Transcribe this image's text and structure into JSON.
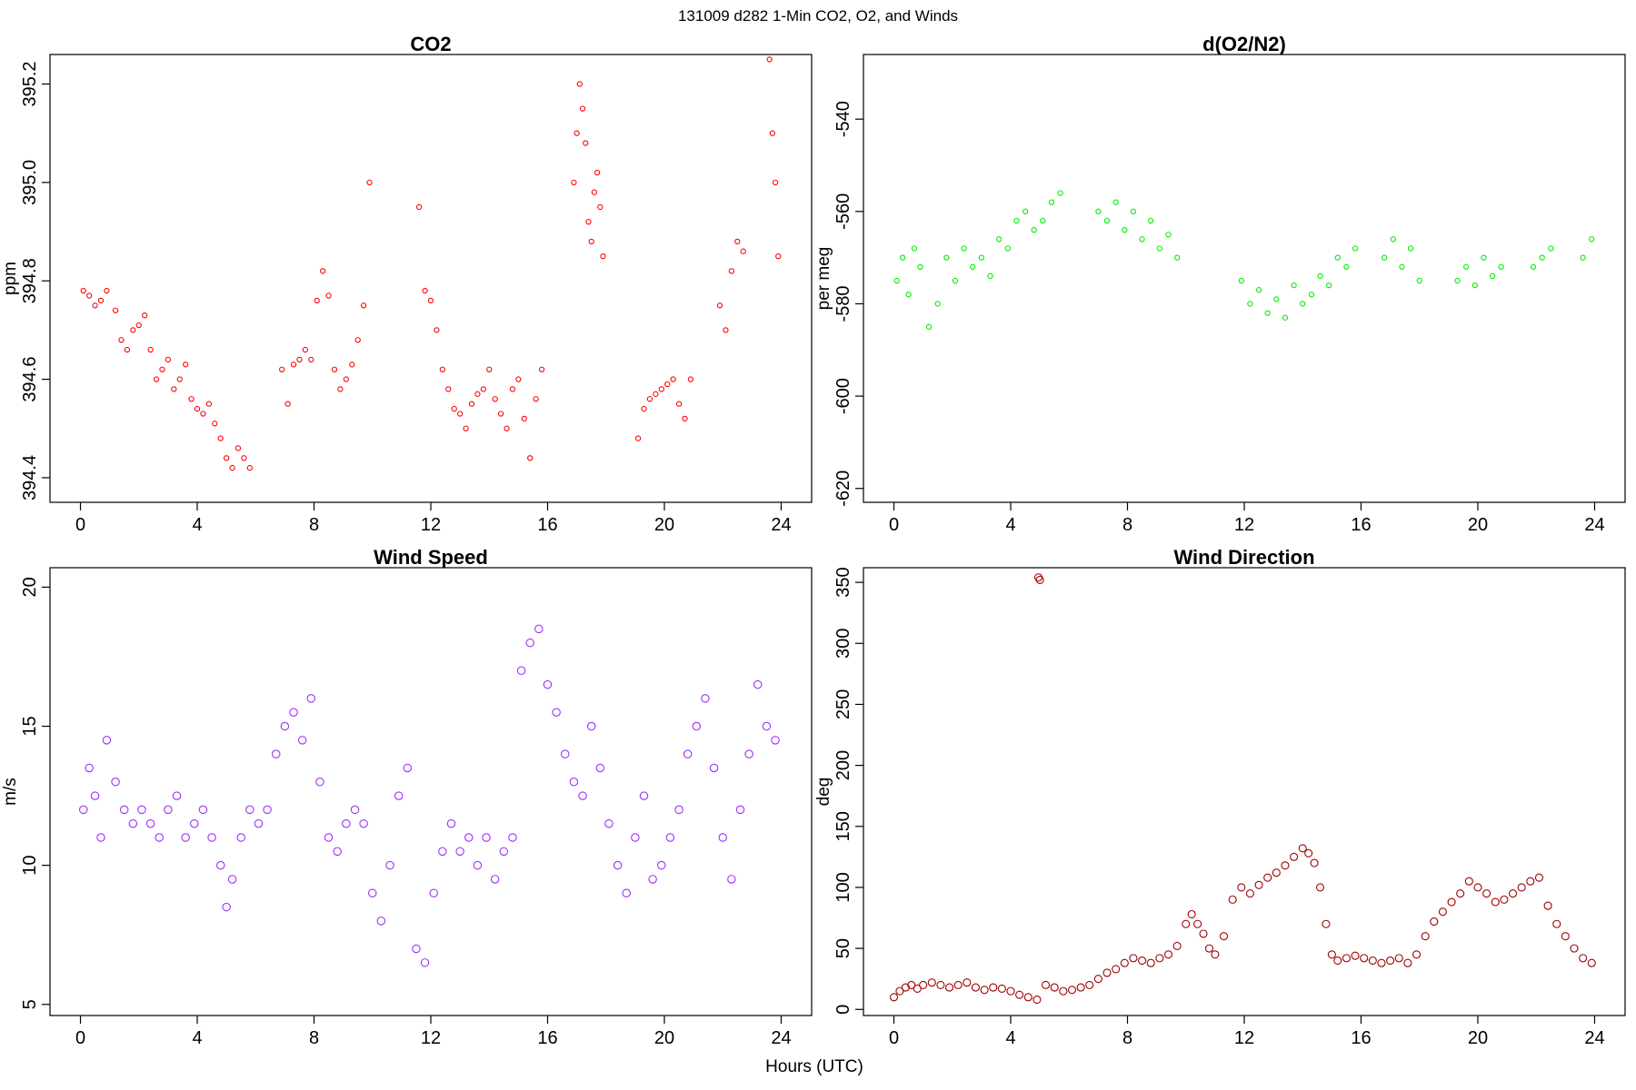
{
  "supertitle": "131009   d282   1-Min CO2, O2, and Winds",
  "xlabel": "Hours (UTC)",
  "chart_data": [
    {
      "id": "co2",
      "type": "scatter",
      "title": "CO2",
      "ylabel": "ppm",
      "xlim": [
        0,
        24
      ],
      "ylim": [
        394.35,
        395.26
      ],
      "xticks": [
        0,
        4,
        8,
        12,
        16,
        20,
        24
      ],
      "yticks": [
        394.4,
        394.6,
        394.8,
        395.0,
        395.2
      ],
      "ytick_labels": [
        "394.4",
        "394.6",
        "394.8",
        "395.0",
        "395.2"
      ],
      "color": "#ff0000",
      "series": [
        {
          "x": [
            0.1,
            0.3,
            0.5,
            0.7,
            0.9,
            1.2,
            1.4,
            1.6,
            1.8,
            2.0,
            2.2,
            2.4,
            2.6,
            2.8,
            3.0,
            3.2,
            3.4,
            3.6,
            3.8,
            4.0,
            4.2,
            4.4,
            4.6,
            4.8,
            5.0,
            5.2,
            5.4,
            5.6,
            5.8,
            6.9,
            7.1,
            7.3,
            7.5,
            7.7,
            7.9,
            8.1,
            8.3,
            8.5,
            8.7,
            8.9,
            9.1,
            9.3,
            9.5,
            9.7,
            9.9,
            11.6,
            11.8,
            12.0,
            12.2,
            12.4,
            12.6,
            12.8,
            13.0,
            13.2,
            13.4,
            13.6,
            13.8,
            14.0,
            14.2,
            14.4,
            14.6,
            14.8,
            15.0,
            15.2,
            15.4,
            15.6,
            15.8,
            16.9,
            17.0,
            17.1,
            17.2,
            17.3,
            17.4,
            17.5,
            17.6,
            17.7,
            17.8,
            17.9,
            19.1,
            19.3,
            19.5,
            19.7,
            19.9,
            20.1,
            20.3,
            20.5,
            20.7,
            20.9,
            21.9,
            22.1,
            22.3,
            22.5,
            22.7,
            23.6,
            23.7,
            23.8,
            23.9
          ],
          "y": [
            394.78,
            394.77,
            394.75,
            394.76,
            394.78,
            394.74,
            394.68,
            394.66,
            394.7,
            394.71,
            394.73,
            394.66,
            394.6,
            394.62,
            394.64,
            394.58,
            394.6,
            394.63,
            394.56,
            394.54,
            394.53,
            394.55,
            394.51,
            394.48,
            394.44,
            394.42,
            394.46,
            394.44,
            394.42,
            394.62,
            394.55,
            394.63,
            394.64,
            394.66,
            394.64,
            394.76,
            394.82,
            394.77,
            394.62,
            394.58,
            394.6,
            394.63,
            394.68,
            394.75,
            395.0,
            394.95,
            394.78,
            394.76,
            394.7,
            394.62,
            394.58,
            394.54,
            394.53,
            394.5,
            394.55,
            394.57,
            394.58,
            394.62,
            394.56,
            394.53,
            394.5,
            394.58,
            394.6,
            394.52,
            394.44,
            394.56,
            394.62,
            395.0,
            395.1,
            395.2,
            395.15,
            395.08,
            394.92,
            394.88,
            394.98,
            395.02,
            394.95,
            394.85,
            394.48,
            394.54,
            394.56,
            394.57,
            394.58,
            394.59,
            394.6,
            394.55,
            394.52,
            394.6,
            394.75,
            394.7,
            394.82,
            394.88,
            394.86,
            395.25,
            395.1,
            395.0,
            394.85
          ]
        }
      ]
    },
    {
      "id": "o2",
      "type": "scatter",
      "title": "d(O2/N2)",
      "ylabel": "per meg",
      "xlim": [
        0,
        24
      ],
      "ylim": [
        -623,
        -526
      ],
      "xticks": [
        0,
        4,
        8,
        12,
        16,
        20,
        24
      ],
      "yticks": [
        -620,
        -600,
        -580,
        -560,
        -540
      ],
      "ytick_labels": [
        "-620",
        "-600",
        "-580",
        "-560",
        "-540"
      ],
      "color": "#00ee00",
      "series": [
        {
          "x": [
            0.1,
            0.3,
            0.5,
            0.7,
            0.9,
            1.2,
            1.5,
            1.8,
            2.1,
            2.4,
            2.7,
            3.0,
            3.3,
            3.6,
            3.9,
            4.2,
            4.5,
            4.8,
            5.1,
            5.4,
            5.7,
            7.0,
            7.3,
            7.6,
            7.9,
            8.2,
            8.5,
            8.8,
            9.1,
            9.4,
            9.7,
            11.9,
            12.2,
            12.5,
            12.8,
            13.1,
            13.4,
            13.7,
            14.0,
            14.3,
            14.6,
            14.9,
            15.2,
            15.5,
            15.8,
            16.8,
            17.1,
            17.4,
            17.7,
            18.0,
            19.3,
            19.6,
            19.9,
            20.2,
            20.5,
            20.8,
            21.9,
            22.2,
            22.5,
            23.6,
            23.9
          ],
          "y": [
            -575,
            -570,
            -578,
            -568,
            -572,
            -585,
            -580,
            -570,
            -575,
            -568,
            -572,
            -570,
            -574,
            -566,
            -568,
            -562,
            -560,
            -564,
            -562,
            -558,
            -556,
            -560,
            -562,
            -558,
            -564,
            -560,
            -566,
            -562,
            -568,
            -565,
            -570,
            -575,
            -580,
            -577,
            -582,
            -579,
            -583,
            -576,
            -580,
            -578,
            -574,
            -576,
            -570,
            -572,
            -568,
            -570,
            -566,
            -572,
            -568,
            -575,
            -575,
            -572,
            -576,
            -570,
            -574,
            -572,
            -572,
            -570,
            -568,
            -570,
            -566
          ]
        }
      ]
    },
    {
      "id": "wind_speed",
      "type": "scatter",
      "title": "Wind Speed",
      "ylabel": "m/s",
      "xlim": [
        0,
        24
      ],
      "ylim": [
        4.6,
        20.7
      ],
      "xticks": [
        0,
        4,
        8,
        12,
        16,
        20,
        24
      ],
      "yticks": [
        5,
        10,
        15,
        20
      ],
      "ytick_labels": [
        "5",
        "10",
        "15",
        "20"
      ],
      "color": "#9b30ff",
      "series": [
        {
          "x": [
            0.1,
            0.3,
            0.5,
            0.7,
            0.9,
            1.2,
            1.5,
            1.8,
            2.1,
            2.4,
            2.7,
            3.0,
            3.3,
            3.6,
            3.9,
            4.2,
            4.5,
            4.8,
            5.0,
            5.2,
            5.5,
            5.8,
            6.1,
            6.4,
            6.7,
            7.0,
            7.3,
            7.6,
            7.9,
            8.2,
            8.5,
            8.8,
            9.1,
            9.4,
            9.7,
            10.0,
            10.3,
            10.6,
            10.9,
            11.2,
            11.5,
            11.8,
            12.1,
            12.4,
            12.7,
            13.0,
            13.3,
            13.6,
            13.9,
            14.2,
            14.5,
            14.8,
            15.1,
            15.4,
            15.7,
            16.0,
            16.3,
            16.6,
            16.9,
            17.2,
            17.5,
            17.8,
            18.1,
            18.4,
            18.7,
            19.0,
            19.3,
            19.6,
            19.9,
            20.2,
            20.5,
            20.8,
            21.1,
            21.4,
            21.7,
            22.0,
            22.3,
            22.6,
            22.9,
            23.2,
            23.5,
            23.8
          ],
          "y": [
            12.0,
            13.5,
            12.5,
            11.0,
            14.5,
            13.0,
            12.0,
            11.5,
            12.0,
            11.5,
            11.0,
            12.0,
            12.5,
            11.0,
            11.5,
            12.0,
            11.0,
            10.0,
            8.5,
            9.5,
            11.0,
            12.0,
            11.5,
            12.0,
            14.0,
            15.0,
            15.5,
            14.5,
            16.0,
            13.0,
            11.0,
            10.5,
            11.5,
            12.0,
            11.5,
            9.0,
            8.0,
            10.0,
            12.5,
            13.5,
            7.0,
            6.5,
            9.0,
            10.5,
            11.5,
            10.5,
            11.0,
            10.0,
            11.0,
            9.5,
            10.5,
            11.0,
            17.0,
            18.0,
            18.5,
            16.5,
            15.5,
            14.0,
            13.0,
            12.5,
            15.0,
            13.5,
            11.5,
            10.0,
            9.0,
            11.0,
            12.5,
            9.5,
            10.0,
            11.0,
            12.0,
            14.0,
            15.0,
            16.0,
            13.5,
            11.0,
            9.5,
            12.0,
            14.0,
            16.5,
            15.0,
            14.5
          ]
        }
      ]
    },
    {
      "id": "wind_direction",
      "type": "scatter",
      "title": "Wind Direction",
      "ylabel": "deg",
      "xlim": [
        0,
        24
      ],
      "ylim": [
        -5,
        362
      ],
      "xticks": [
        0,
        4,
        8,
        12,
        16,
        20,
        24
      ],
      "yticks": [
        0,
        50,
        100,
        150,
        200,
        250,
        300,
        350
      ],
      "ytick_labels": [
        "0",
        "50",
        "100",
        "150",
        "200",
        "250",
        "300",
        "350"
      ],
      "color": "#a00000",
      "series": [
        {
          "x": [
            0.0,
            0.2,
            0.4,
            0.6,
            0.8,
            1.0,
            1.3,
            1.6,
            1.9,
            2.2,
            2.5,
            2.8,
            3.1,
            3.4,
            3.7,
            4.0,
            4.3,
            4.6,
            4.9,
            4.95,
            5.0,
            5.2,
            5.5,
            5.8,
            6.1,
            6.4,
            6.7,
            7.0,
            7.3,
            7.6,
            7.9,
            8.2,
            8.5,
            8.8,
            9.1,
            9.4,
            9.7,
            10.0,
            10.2,
            10.4,
            10.6,
            10.8,
            11.0,
            11.3,
            11.6,
            11.9,
            12.2,
            12.5,
            12.8,
            13.1,
            13.4,
            13.7,
            14.0,
            14.2,
            14.4,
            14.6,
            14.8,
            15.0,
            15.2,
            15.5,
            15.8,
            16.1,
            16.4,
            16.7,
            17.0,
            17.3,
            17.6,
            17.9,
            18.2,
            18.5,
            18.8,
            19.1,
            19.4,
            19.7,
            20.0,
            20.3,
            20.6,
            20.9,
            21.2,
            21.5,
            21.8,
            22.1,
            22.4,
            22.7,
            23.0,
            23.3,
            23.6,
            23.9
          ],
          "y": [
            10,
            15,
            18,
            20,
            17,
            20,
            22,
            20,
            18,
            20,
            22,
            18,
            16,
            18,
            17,
            15,
            12,
            10,
            8,
            354,
            352,
            20,
            18,
            15,
            16,
            18,
            20,
            25,
            30,
            33,
            38,
            42,
            40,
            38,
            42,
            45,
            52,
            70,
            78,
            70,
            62,
            50,
            45,
            60,
            90,
            100,
            95,
            102,
            108,
            112,
            118,
            125,
            132,
            128,
            120,
            100,
            70,
            45,
            40,
            42,
            44,
            42,
            40,
            38,
            40,
            42,
            38,
            45,
            60,
            72,
            80,
            88,
            95,
            105,
            100,
            95,
            88,
            90,
            95,
            100,
            105,
            108,
            85,
            70,
            60,
            50,
            42,
            38
          ]
        }
      ]
    }
  ]
}
